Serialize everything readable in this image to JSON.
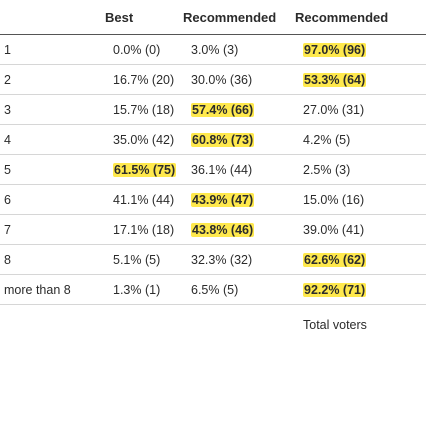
{
  "header": {
    "col_number": "",
    "col_best": "Best",
    "col_recommended": "Recommended",
    "col_not_recommended": "Recommended"
  },
  "rows": [
    {
      "players": "1",
      "best": "0.0% (0)",
      "recommended": "3.0% (3)",
      "not_recommended": "97.0% (96)",
      "highlight": "not_recommended"
    },
    {
      "players": "2",
      "best": "16.7% (20)",
      "recommended": "30.0% (36)",
      "not_recommended": "53.3% (64)",
      "highlight": "not_recommended"
    },
    {
      "players": "3",
      "best": "15.7% (18)",
      "recommended": "57.4% (66)",
      "not_recommended": "27.0% (31)",
      "highlight": "recommended"
    },
    {
      "players": "4",
      "best": "35.0% (42)",
      "recommended": "60.8% (73)",
      "not_recommended": "4.2% (5)",
      "highlight": "recommended"
    },
    {
      "players": "5",
      "best": "61.5% (75)",
      "recommended": "36.1% (44)",
      "not_recommended": "2.5% (3)",
      "highlight": "best"
    },
    {
      "players": "6",
      "best": "41.1% (44)",
      "recommended": "43.9% (47)",
      "not_recommended": "15.0% (16)",
      "highlight": "recommended"
    },
    {
      "players": "7",
      "best": "17.1% (18)",
      "recommended": "43.8% (46)",
      "not_recommended": "39.0% (41)",
      "highlight": "recommended"
    },
    {
      "players": "8",
      "best": "5.1% (5)",
      "recommended": "32.3% (32)",
      "not_recommended": "62.6% (62)",
      "highlight": "not_recommended"
    },
    {
      "players": "more than 8",
      "best": "1.3% (1)",
      "recommended": "6.5% (5)",
      "not_recommended": "92.2% (71)",
      "highlight": "not_recommended"
    }
  ],
  "footer": {
    "total_voters_label": "Total voters"
  },
  "colors": {
    "highlight": "#ffe94d",
    "header_rule": "#555555",
    "row_rule": "#d6d6d6",
    "text": "#2b2b2b"
  }
}
